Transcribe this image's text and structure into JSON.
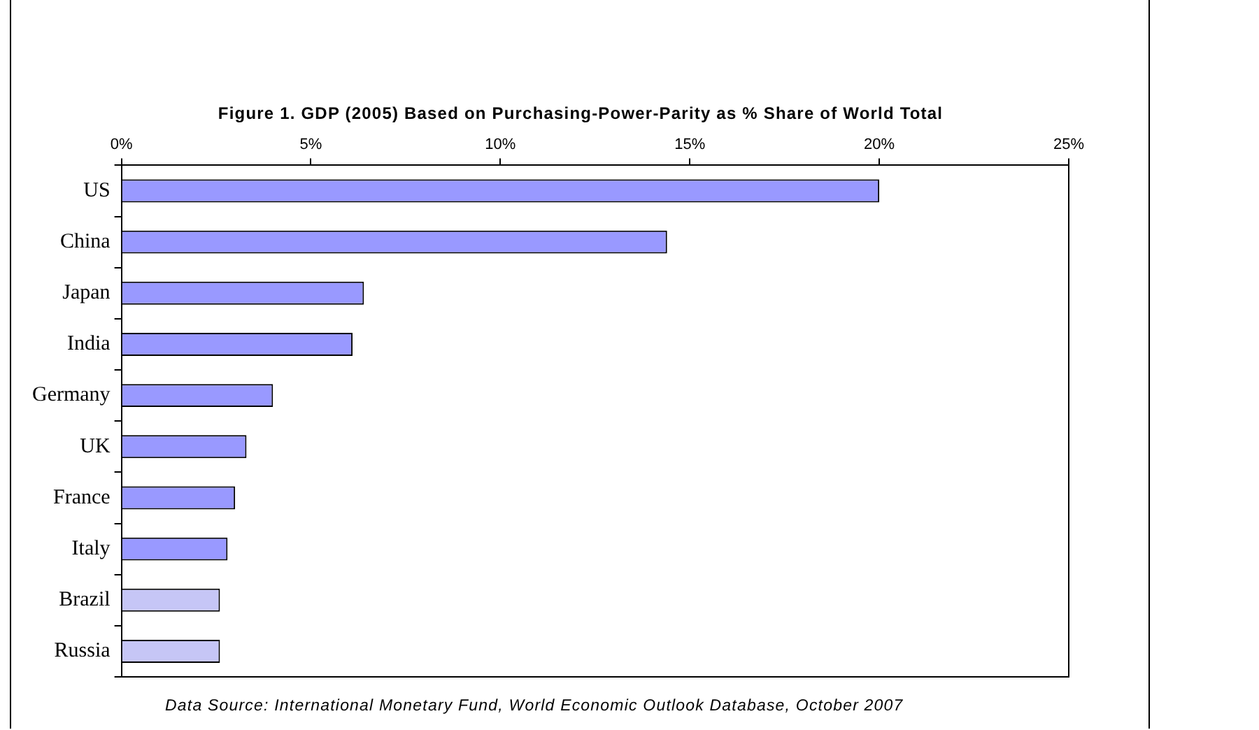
{
  "chart_data": {
    "type": "bar",
    "orientation": "horizontal",
    "title": "Figure 1. GDP (2005) Based on Purchasing-Power-Parity as % Share of World Total",
    "categories": [
      "US",
      "China",
      "Japan",
      "India",
      "Germany",
      "UK",
      "France",
      "Italy",
      "Brazil",
      "Russia"
    ],
    "values": [
      20.0,
      14.4,
      6.4,
      6.1,
      4.0,
      3.3,
      3.0,
      2.8,
      2.6,
      2.6
    ],
    "colors": [
      "#9999ff",
      "#9999ff",
      "#9999ff",
      "#9999ff",
      "#9999ff",
      "#9999ff",
      "#9999ff",
      "#9999ff",
      "#c6c6f6",
      "#c6c6f6"
    ],
    "xlim": [
      0,
      25
    ],
    "xticks": [
      {
        "value": 0,
        "label": "0%"
      },
      {
        "value": 5,
        "label": "5%"
      },
      {
        "value": 10,
        "label": "10%"
      },
      {
        "value": 15,
        "label": "15%"
      },
      {
        "value": 20,
        "label": "20%"
      },
      {
        "value": 25,
        "label": "25%"
      }
    ],
    "grid": false,
    "legend": false,
    "annotations": [
      "Data Source: International Monetary Fund, World Economic Outlook Database, October 2007"
    ]
  }
}
